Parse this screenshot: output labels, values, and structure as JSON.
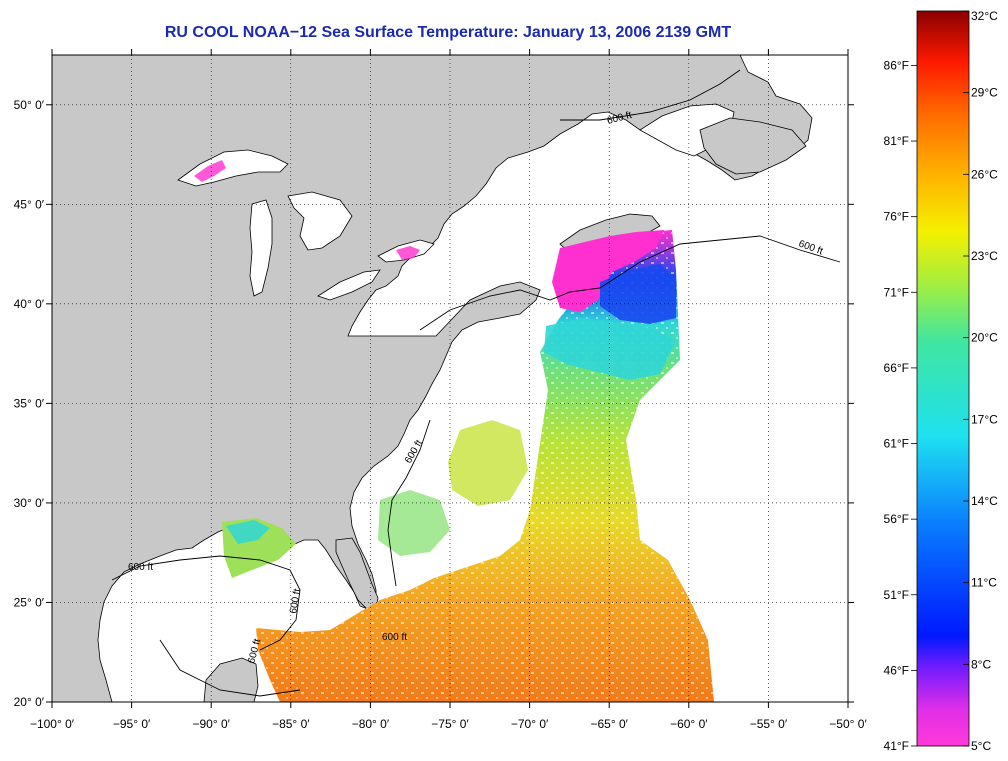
{
  "title": "RU COOL  NOAA−12  Sea Surface Temperature:  January 13, 2006 2139 GMT",
  "axes": {
    "lon_ticks": [
      "−100° 0′",
      "−95° 0′",
      "−90° 0′",
      "−85° 0′",
      "−80° 0′",
      "−75° 0′",
      "−70° 0′",
      "−65° 0′",
      "−60° 0′",
      "−55° 0′",
      "−50° 0′"
    ],
    "lat_ticks": [
      "50° 0′",
      "45° 0′",
      "40° 0′",
      "35° 0′",
      "30° 0′",
      "25° 0′",
      "20° 0′"
    ],
    "lon_range": [
      -100,
      -50
    ],
    "lat_range": [
      20,
      52.5
    ]
  },
  "contour_labels": [
    "600 ft",
    "600 ft",
    "600 ft",
    "600 ft",
    "600 ft",
    "600 ft",
    "600 ft"
  ],
  "colorbar": {
    "celsius": [
      "32°C",
      "29°C",
      "26°C",
      "23°C",
      "20°C",
      "17°C",
      "14°C",
      "11°C",
      "8°C",
      "5°C"
    ],
    "fahrenheit": [
      "86°F",
      "81°F",
      "76°F",
      "71°F",
      "66°F",
      "61°F",
      "56°F",
      "51°F",
      "46°F",
      "41°F"
    ],
    "range_c": [
      5,
      32
    ]
  },
  "colors": {
    "land": "#c8c8c8",
    "ocean_nodata": "#ffffff",
    "title": "#1a2bb0",
    "sst_warm": "#f58a1e",
    "sst_mid": "#d6df2a",
    "sst_cool": "#3ad6d2",
    "sst_cold": "#1f36ee",
    "sst_coldest": "#ff2fd0"
  }
}
